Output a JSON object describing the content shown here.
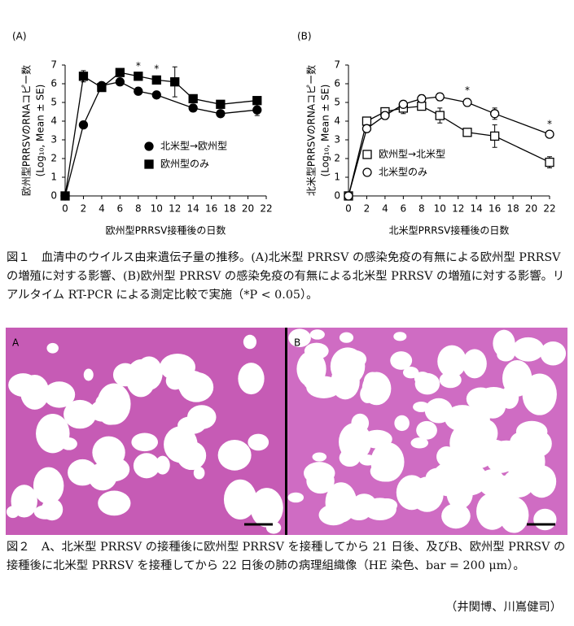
{
  "chart_data": [
    {
      "type": "line",
      "label": "(A)",
      "ylabel": [
        "欧州型PRRSVのRNAコピー数",
        "(Log₁₀, Mean ± SE)"
      ],
      "xlabel": "欧州型PRRSV接種後の日数",
      "xlim": [
        0,
        22
      ],
      "xticks": [
        0,
        2,
        4,
        6,
        8,
        10,
        12,
        14,
        16,
        18,
        20,
        22
      ],
      "ylim": [
        0,
        7
      ],
      "yticks": [
        0,
        1,
        2,
        3,
        4,
        5,
        6,
        7
      ],
      "legend": "right",
      "series": [
        {
          "name": "北米型→欧州型",
          "color": "#000000",
          "marker": "circle",
          "filled": true,
          "x": [
            0,
            2,
            4,
            6,
            8,
            10,
            14,
            17,
            21
          ],
          "values": [
            0,
            3.8,
            5.9,
            6.1,
            5.6,
            5.4,
            4.7,
            4.4,
            4.6
          ],
          "errors": [
            0,
            0.1,
            0.1,
            0.15,
            0.1,
            0.1,
            0.2,
            0.1,
            0.3
          ]
        },
        {
          "name": "欧州型のみ",
          "color": "#000000",
          "marker": "square",
          "filled": true,
          "x": [
            0,
            2,
            4,
            6,
            8,
            10,
            12,
            14,
            17,
            21
          ],
          "values": [
            0,
            6.4,
            5.8,
            6.6,
            6.4,
            6.2,
            6.1,
            5.2,
            4.9,
            5.1
          ],
          "errors": [
            0,
            0.3,
            0.2,
            0.1,
            0.1,
            0.15,
            0.8,
            0.2,
            0.1,
            0.1
          ]
        }
      ],
      "annotations": [
        {
          "text": "*",
          "x": 8
        },
        {
          "text": "*",
          "x": 10
        }
      ]
    },
    {
      "type": "line",
      "label": "(B)",
      "ylabel": [
        "北米型PRRSVのRNAコピー数",
        "(Log₁₀, Mean ± SE)"
      ],
      "xlabel": "北米型PRRSV接種後の日数",
      "xlim": [
        0,
        22
      ],
      "xticks": [
        0,
        2,
        4,
        6,
        8,
        10,
        12,
        14,
        16,
        18,
        20,
        22
      ],
      "ylim": [
        0,
        7
      ],
      "yticks": [
        0,
        1,
        2,
        3,
        4,
        5,
        6,
        7
      ],
      "legend": "lower left",
      "series": [
        {
          "name": "欧州型→北米型",
          "color": "#000000",
          "marker": "square",
          "filled": false,
          "x": [
            0,
            2,
            4,
            6,
            8,
            10,
            13,
            16,
            22
          ],
          "values": [
            0,
            4.0,
            4.5,
            4.7,
            4.8,
            4.3,
            3.4,
            3.2,
            1.8
          ],
          "errors": [
            0,
            0.1,
            0.2,
            0.3,
            0.2,
            0.4,
            0.2,
            0.6,
            0.3
          ]
        },
        {
          "name": "北米型のみ",
          "color": "#000000",
          "marker": "circle",
          "filled": false,
          "x": [
            0,
            2,
            4,
            6,
            8,
            10,
            13,
            16,
            22
          ],
          "values": [
            0,
            3.6,
            4.3,
            4.9,
            5.2,
            5.3,
            5.0,
            4.4,
            3.3
          ],
          "errors": [
            0,
            0.2,
            0.2,
            0.1,
            0.2,
            0.2,
            0.2,
            0.3,
            0.1
          ]
        }
      ],
      "annotations": [
        {
          "text": "*",
          "x": 13
        },
        {
          "text": "*",
          "x": 22
        }
      ]
    }
  ],
  "figure1_caption": "図１　血清中のウイルス由来遺伝子量の推移。(A)北米型 PRRSV の感染免疫の有無による欧州型 PRRSV の増殖に対する影響、(B)欧州型 PRRSV の感染免疫の有無による北米型 PRRSV の増殖に対する影響。リアルタイム RT-PCR による測定比較で実施（*P < 0.05）。",
  "figure2": {
    "panels": [
      "A",
      "B"
    ],
    "caption": "図２　A、北米型 PRRSV の接種後に欧州型 PRRSV を接種してから 21 日後、及びB、欧州型 PRRSV の接種後に北米型 PRRSV を接種してから 22 日後の肺の病理組織像（HE 染色、bar = 200 μm）。"
  },
  "credit": "（井関博、川嶌健司）"
}
